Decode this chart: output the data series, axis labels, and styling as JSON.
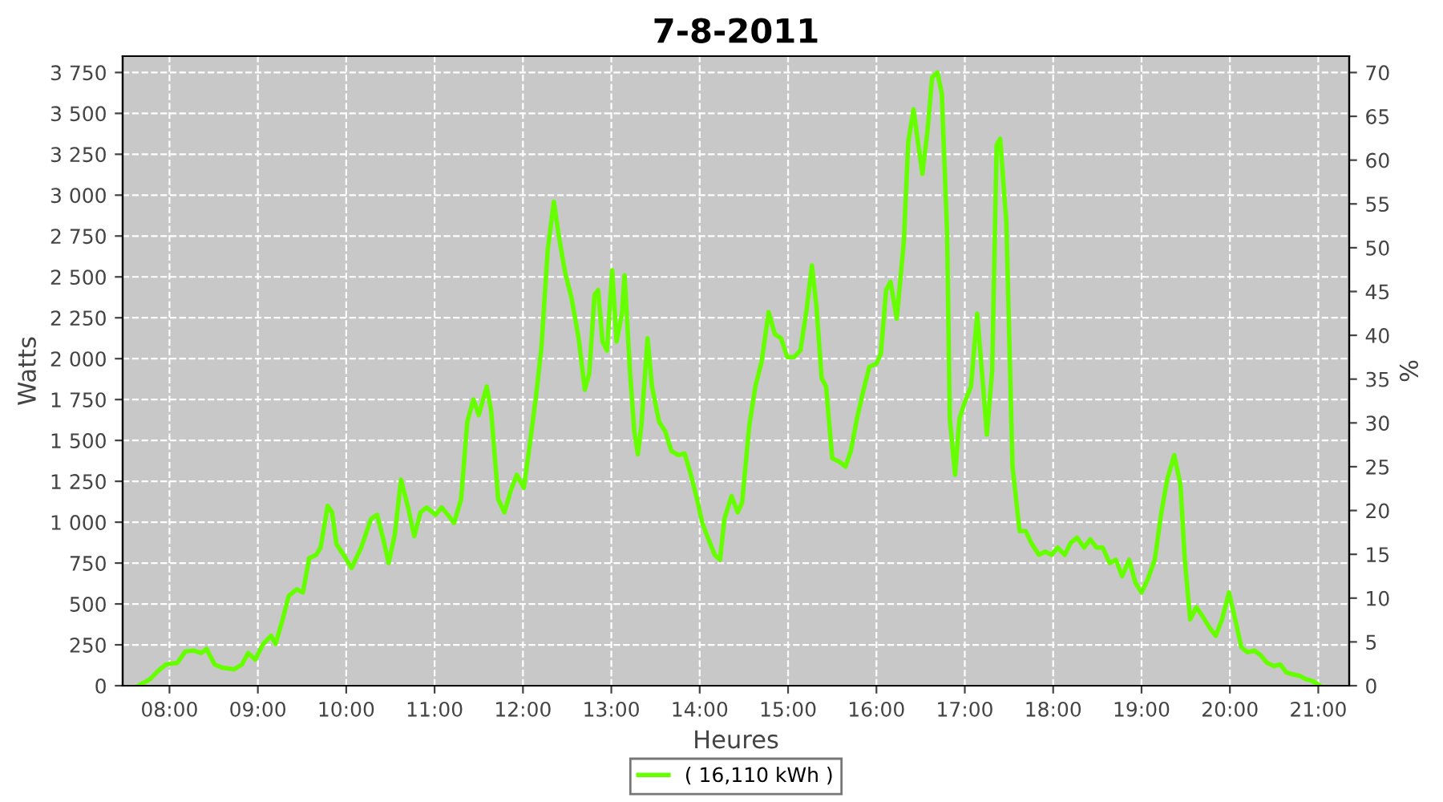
{
  "chart_data": {
    "type": "line",
    "title": "7-8-2011",
    "xlabel": "Heures",
    "ylabel": "Watts",
    "y2label": "%",
    "xlim": [
      7.47,
      21.35
    ],
    "xticks": [
      {
        "value": 8,
        "label": "08:00"
      },
      {
        "value": 9,
        "label": "09:00"
      },
      {
        "value": 10,
        "label": "10:00"
      },
      {
        "value": 11,
        "label": "11:00"
      },
      {
        "value": 12,
        "label": "12:00"
      },
      {
        "value": 13,
        "label": "13:00"
      },
      {
        "value": 14,
        "label": "14:00"
      },
      {
        "value": 15,
        "label": "15:00"
      },
      {
        "value": 16,
        "label": "16:00"
      },
      {
        "value": 17,
        "label": "17:00"
      },
      {
        "value": 18,
        "label": "18:00"
      },
      {
        "value": 19,
        "label": "19:00"
      },
      {
        "value": 20,
        "label": "20:00"
      },
      {
        "value": 21,
        "label": "21:00"
      }
    ],
    "ylim": [
      0,
      3850
    ],
    "yticks": [
      0,
      250,
      500,
      750,
      {
        "value": 1000,
        "label": "1 000"
      },
      {
        "value": 1250,
        "label": "1 250"
      },
      {
        "value": 1500,
        "label": "1 500"
      },
      {
        "value": 1750,
        "label": "1 750"
      },
      {
        "value": 2000,
        "label": "2 000"
      },
      {
        "value": 2250,
        "label": "2 250"
      },
      {
        "value": 2500,
        "label": "2 500"
      },
      {
        "value": 2750,
        "label": "2 750"
      },
      {
        "value": 3000,
        "label": "3 000"
      },
      {
        "value": 3250,
        "label": "3 250"
      },
      {
        "value": 3500,
        "label": "3 500"
      },
      {
        "value": 3750,
        "label": "3 750"
      }
    ],
    "y2lim": [
      0,
      71.87
    ],
    "y2ticks": [
      0,
      5,
      10,
      15,
      20,
      25,
      30,
      35,
      40,
      45,
      50,
      55,
      60,
      65,
      70
    ],
    "grid": true,
    "legend": "bottom",
    "marker": "none",
    "line_style": "solid",
    "series": [
      {
        "name": "( 16,110 kWh )",
        "color": "#66ff00",
        "x": [
          7.65,
          7.78,
          7.87,
          7.96,
          8.09,
          8.18,
          8.27,
          8.36,
          8.42,
          8.51,
          8.6,
          8.73,
          8.82,
          8.89,
          8.97,
          9.06,
          9.15,
          9.2,
          9.28,
          9.35,
          9.44,
          9.51,
          9.58,
          9.66,
          9.71,
          9.79,
          9.84,
          9.89,
          9.97,
          10.06,
          10.17,
          10.28,
          10.35,
          10.42,
          10.48,
          10.55,
          10.62,
          10.7,
          10.77,
          10.84,
          10.91,
          11.01,
          11.08,
          11.15,
          11.22,
          11.3,
          11.37,
          11.44,
          11.5,
          11.59,
          11.64,
          11.72,
          11.79,
          11.86,
          11.93,
          12.01,
          12.08,
          12.15,
          12.21,
          12.28,
          12.35,
          12.41,
          12.48,
          12.55,
          12.63,
          12.7,
          12.75,
          12.81,
          12.85,
          12.9,
          12.95,
          13.01,
          13.06,
          13.12,
          13.15,
          13.21,
          13.26,
          13.3,
          13.34,
          13.41,
          13.46,
          13.54,
          13.61,
          13.68,
          13.76,
          13.83,
          13.9,
          13.97,
          14.03,
          14.1,
          14.17,
          14.23,
          14.28,
          14.36,
          14.43,
          14.48,
          14.56,
          14.63,
          14.7,
          14.78,
          14.85,
          14.92,
          14.99,
          15.07,
          15.14,
          15.21,
          15.27,
          15.32,
          15.38,
          15.43,
          15.5,
          15.58,
          15.65,
          15.71,
          15.78,
          15.85,
          15.92,
          16.0,
          16.05,
          16.11,
          16.16,
          16.23,
          16.31,
          16.36,
          16.42,
          16.47,
          16.52,
          16.58,
          16.63,
          16.69,
          16.74,
          16.8,
          16.83,
          16.89,
          16.94,
          17.0,
          17.07,
          17.14,
          17.2,
          17.25,
          17.31,
          17.36,
          17.4,
          17.47,
          17.54,
          17.62,
          17.69,
          17.76,
          17.84,
          17.91,
          17.98,
          18.05,
          18.13,
          18.2,
          18.27,
          18.35,
          18.42,
          18.49,
          18.56,
          18.64,
          18.71,
          18.78,
          18.86,
          18.93,
          19.0,
          19.07,
          19.15,
          19.22,
          19.29,
          19.37,
          19.44,
          19.49,
          19.55,
          19.62,
          19.69,
          19.77,
          19.84,
          19.91,
          19.99,
          20.06,
          20.13,
          20.2,
          20.28,
          20.35,
          20.42,
          20.5,
          20.57,
          20.64,
          20.71,
          20.79,
          20.86,
          20.93,
          21.02
        ],
        "values": [
          0,
          40,
          90,
          130,
          140,
          210,
          215,
          200,
          225,
          130,
          110,
          100,
          130,
          200,
          160,
          255,
          305,
          255,
          405,
          550,
          590,
          570,
          780,
          800,
          845,
          1100,
          1060,
          865,
          800,
          720,
          845,
          1020,
          1045,
          895,
          750,
          925,
          1260,
          1090,
          915,
          1060,
          1090,
          1045,
          1090,
          1045,
          995,
          1140,
          1615,
          1750,
          1655,
          1830,
          1680,
          1140,
          1060,
          1190,
          1290,
          1210,
          1485,
          1780,
          2075,
          2665,
          2960,
          2735,
          2520,
          2370,
          2125,
          1810,
          1910,
          2390,
          2420,
          2105,
          2050,
          2540,
          2105,
          2275,
          2510,
          1930,
          1555,
          1415,
          1590,
          2125,
          1830,
          1615,
          1555,
          1435,
          1410,
          1420,
          1290,
          1140,
          995,
          895,
          800,
          770,
          1020,
          1160,
          1060,
          1120,
          1585,
          1830,
          1980,
          2285,
          2150,
          2125,
          2010,
          2010,
          2050,
          2300,
          2570,
          2325,
          1880,
          1830,
          1390,
          1370,
          1340,
          1435,
          1635,
          1800,
          1950,
          1970,
          2030,
          2420,
          2470,
          2245,
          2715,
          3325,
          3525,
          3325,
          3130,
          3405,
          3720,
          3750,
          3620,
          2765,
          1635,
          1290,
          1635,
          1735,
          1830,
          2275,
          1880,
          1535,
          1930,
          3305,
          3345,
          2835,
          1340,
          945,
          945,
          865,
          800,
          820,
          800,
          845,
          800,
          875,
          905,
          845,
          895,
          845,
          845,
          750,
          770,
          670,
          770,
          630,
          570,
          650,
          770,
          1045,
          1260,
          1410,
          1230,
          770,
          405,
          480,
          425,
          355,
          305,
          405,
          570,
          405,
          235,
          205,
          215,
          185,
          140,
          120,
          130,
          80,
          70,
          60,
          40,
          30,
          0
        ]
      }
    ]
  }
}
